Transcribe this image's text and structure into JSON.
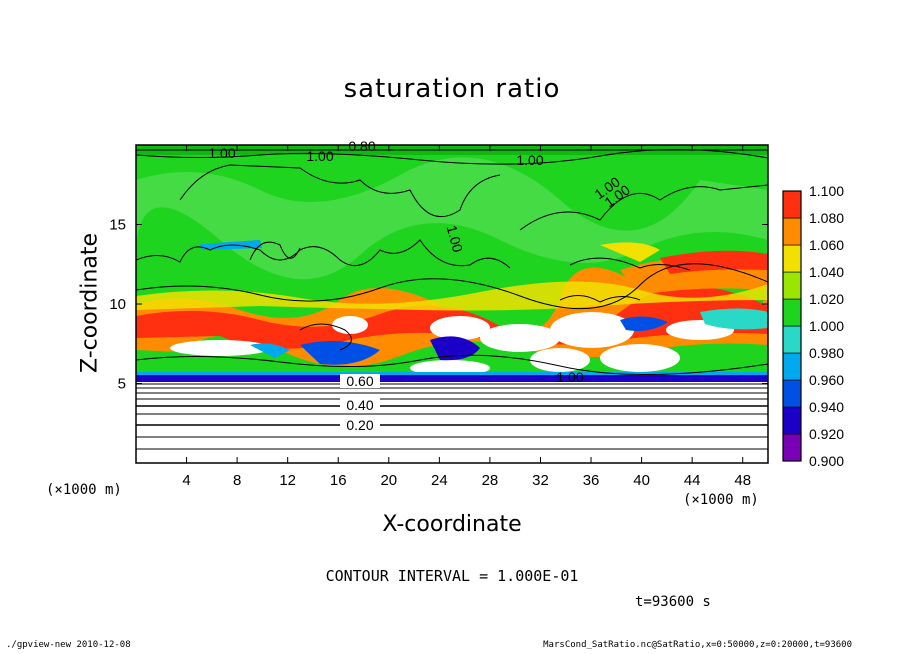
{
  "chart_data": {
    "type": "heatmap",
    "title": "saturation ratio",
    "xlabel": "X-coordinate",
    "ylabel": "Z-coordinate",
    "x_unit": "(×1000 m)",
    "x_ticks": [
      4,
      8,
      12,
      16,
      20,
      24,
      28,
      32,
      36,
      40,
      44,
      48
    ],
    "y_ticks": [
      5,
      10,
      15
    ],
    "xlim": [
      0,
      50
    ],
    "ylim": [
      0,
      20
    ],
    "colorbar": {
      "levels": [
        "0.900",
        "0.920",
        "0.940",
        "0.960",
        "0.980",
        "1.000",
        "1.020",
        "1.040",
        "1.060",
        "1.080",
        "1.100"
      ],
      "colors": [
        "#7a00b8",
        "#1c00c8",
        "#0050e6",
        "#00a8ee",
        "#2ad8c8",
        "#1ed41e",
        "#9ae600",
        "#f2e000",
        "#ff8c00",
        "#ff3010",
        "#ff7a7a"
      ]
    },
    "contour_labels": [
      "1.00",
      "1.00",
      "0.80",
      "1.00",
      "1.00",
      "1.00",
      "1.00",
      "0.60",
      "0.40",
      "0.20",
      "1.00"
    ],
    "contour_interval": "CONTOUR INTERVAL = 1.000E-01",
    "time": "t=93600 s"
  },
  "footer": {
    "left": "./gpview-new  2010-12-08",
    "right": "MarsCond_SatRatio.nc@SatRatio,x=0:50000,z=0:20000,t=93600"
  }
}
